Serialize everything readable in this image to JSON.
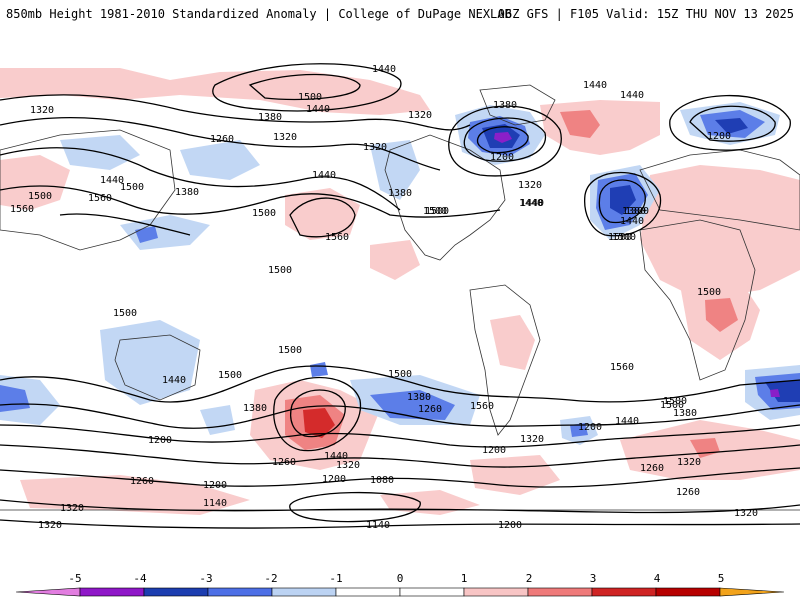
{
  "header": {
    "left_title": "850mb Height 1981-2010 Standardized Anomaly | College of DuPage NEXLAB",
    "right_title": "06Z GFS | F105 Valid: 15Z THU NOV 13 2025"
  },
  "contour_labels": [
    {
      "id": "a1",
      "text": "1440"
    },
    {
      "id": "a2",
      "text": "1500"
    },
    {
      "id": "a3",
      "text": "1440"
    },
    {
      "id": "a4",
      "text": "1380"
    },
    {
      "id": "a5",
      "text": "1320"
    },
    {
      "id": "a6",
      "text": "1320"
    },
    {
      "id": "a7",
      "text": "1260"
    },
    {
      "id": "a8",
      "text": "1320"
    },
    {
      "id": "a9",
      "text": "1380"
    },
    {
      "id": "a10",
      "text": "1440"
    },
    {
      "id": "a11",
      "text": "1440"
    },
    {
      "id": "a12",
      "text": "1500"
    },
    {
      "id": "a13",
      "text": "1380"
    },
    {
      "id": "a14",
      "text": "1560"
    },
    {
      "id": "a15",
      "text": "1500"
    },
    {
      "id": "a16",
      "text": "1560"
    },
    {
      "id": "a17",
      "text": "1500"
    },
    {
      "id": "a18",
      "text": "1500"
    },
    {
      "id": "a19",
      "text": "1320"
    },
    {
      "id": "a20",
      "text": "1380"
    },
    {
      "id": "a21",
      "text": "1200"
    },
    {
      "id": "a22",
      "text": "1320"
    },
    {
      "id": "a23",
      "text": "1440"
    },
    {
      "id": "a24",
      "text": "1500"
    },
    {
      "id": "a25",
      "text": "1380"
    },
    {
      "id": "a26",
      "text": "1440"
    },
    {
      "id": "a27",
      "text": "1500"
    },
    {
      "id": "a28",
      "text": "1440"
    },
    {
      "id": "a29",
      "text": "1440"
    },
    {
      "id": "a30",
      "text": "1200"
    },
    {
      "id": "a31",
      "text": "1500"
    },
    {
      "id": "a32",
      "text": "1500"
    },
    {
      "id": "a33",
      "text": "1380"
    },
    {
      "id": "a34",
      "text": "1500"
    },
    {
      "id": "a35",
      "text": "1500"
    },
    {
      "id": "a36",
      "text": "1500"
    },
    {
      "id": "a37",
      "text": "1560"
    },
    {
      "id": "a38",
      "text": "1440"
    },
    {
      "id": "a39",
      "text": "1380"
    },
    {
      "id": "a40",
      "text": "1260"
    },
    {
      "id": "a41",
      "text": "1320"
    },
    {
      "id": "a42",
      "text": "1200"
    },
    {
      "id": "a43",
      "text": "1440"
    },
    {
      "id": "a44",
      "text": "1320"
    },
    {
      "id": "a45",
      "text": "1260"
    },
    {
      "id": "a46",
      "text": "1200"
    },
    {
      "id": "a47",
      "text": "1080"
    },
    {
      "id": "a48",
      "text": "1140"
    },
    {
      "id": "a49",
      "text": "1200"
    },
    {
      "id": "a50",
      "text": "1320"
    },
    {
      "id": "a51",
      "text": "1140"
    },
    {
      "id": "a52",
      "text": "1200"
    },
    {
      "id": "a53",
      "text": "1260"
    },
    {
      "id": "a54",
      "text": "1320"
    },
    {
      "id": "a55",
      "text": "1560"
    },
    {
      "id": "a56",
      "text": "1500"
    },
    {
      "id": "a57",
      "text": "1440"
    },
    {
      "id": "a58",
      "text": "1380"
    },
    {
      "id": "a59",
      "text": "1260"
    },
    {
      "id": "a60",
      "text": "1320"
    },
    {
      "id": "a61",
      "text": "1200"
    },
    {
      "id": "a62",
      "text": "1260"
    },
    {
      "id": "a63",
      "text": "1320"
    },
    {
      "id": "a64",
      "text": "1500"
    },
    {
      "id": "a65",
      "text": "1560"
    },
    {
      "id": "a66",
      "text": "1500"
    },
    {
      "id": "a67",
      "text": "1440"
    },
    {
      "id": "a68",
      "text": "1380"
    },
    {
      "id": "a69",
      "text": "1500"
    },
    {
      "id": "a70",
      "text": "1200"
    }
  ],
  "colorbar": {
    "tick_labels": [
      "-5",
      "-4",
      "-3",
      "-2",
      "-1",
      "0",
      "1",
      "2",
      "3",
      "4",
      "5"
    ],
    "colors": [
      "#e27de0",
      "#8f17c8",
      "#1c3db0",
      "#4d6fe6",
      "#bcd3f3",
      "#ffffff",
      "#ffffff",
      "#f8c5c5",
      "#ef7a7a",
      "#cf2424",
      "#b70000",
      "#f2a31b"
    ]
  },
  "anomaly_colors": {
    "pos1": "#f9cccc",
    "pos2": "#ef8383",
    "pos3": "#d42b2b",
    "neg1": "#c2d7f4",
    "neg2": "#5c7ee8",
    "neg3": "#1f3eb4",
    "neg4": "#8a1fc8"
  }
}
